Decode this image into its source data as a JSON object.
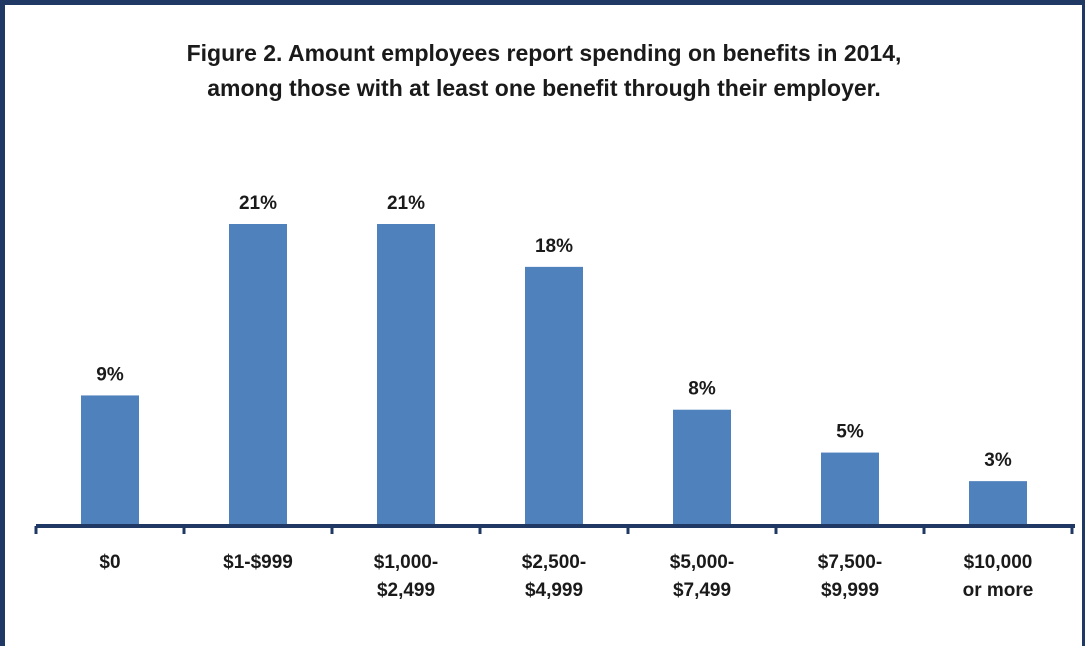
{
  "chart_data": {
    "type": "bar",
    "title_line1": "Figure 2. Amount employees report spending on benefits in 2014,",
    "title_line2": "among those with at least one benefit through their employer.",
    "categories": [
      [
        "$0"
      ],
      [
        "$1-$999"
      ],
      [
        "$1,000-",
        "$2,499"
      ],
      [
        "$2,500-",
        "$4,999"
      ],
      [
        "$5,000-",
        "$7,499"
      ],
      [
        "$7,500-",
        "$9,999"
      ],
      [
        "$10,000",
        "or more"
      ]
    ],
    "values": [
      9,
      21,
      21,
      18,
      8,
      5,
      3
    ],
    "value_labels": [
      "9%",
      "21%",
      "21%",
      "18%",
      "8%",
      "5%",
      "3%"
    ],
    "unit": "%",
    "ylim": [
      0,
      21
    ],
    "grid": false,
    "colors": {
      "bar": "#4f81bd",
      "axis": "#1f3864",
      "frame": "#1f3864"
    }
  }
}
